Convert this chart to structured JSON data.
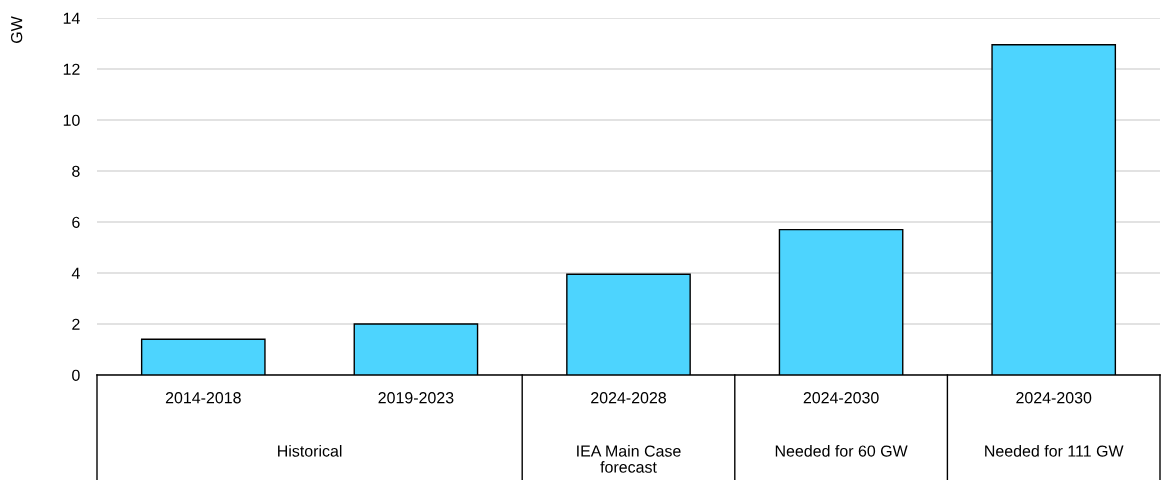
{
  "chart_data": {
    "type": "bar",
    "ylabel": "GW",
    "categories": [
      "2014-2018",
      "2019-2023",
      "2024-2028",
      "2024-2030",
      "2024-2030"
    ],
    "values": [
      1.4,
      2.0,
      3.95,
      5.7,
      12.95
    ],
    "color": "#4dd4fe",
    "ylim": [
      0,
      14
    ],
    "yticks": [
      0,
      2,
      4,
      6,
      8,
      10,
      12,
      14
    ],
    "grid": "y",
    "annotations": [
      "Historical",
      "IEA Main Case forecast",
      "Needed for 60 GW",
      "Needed for 111 GW"
    ]
  }
}
